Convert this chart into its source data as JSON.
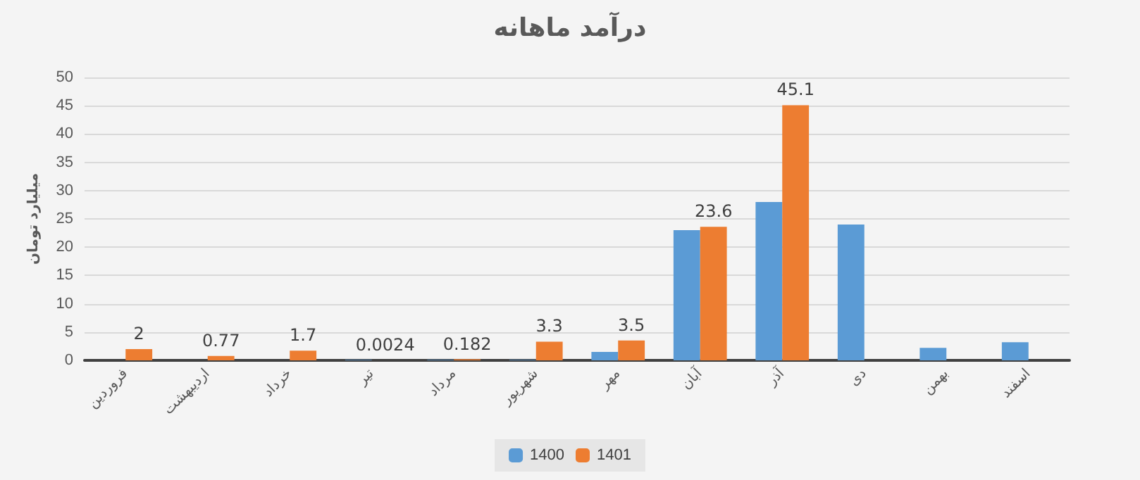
{
  "chart_data": {
    "type": "bar",
    "title": "درآمد ماهانه",
    "ylabel": "میلیارد تومان",
    "categories": [
      "فروردین",
      "اردیبهشت",
      "خرداد",
      "تیر",
      "مرداد",
      "شهریور",
      "مهر",
      "آبان",
      "آذر",
      "دی",
      "بهمن",
      "اسفند"
    ],
    "series": [
      {
        "name": "1400",
        "color": "#5b9bd5",
        "values": [
          null,
          null,
          null,
          0.1,
          0.1,
          0.1,
          1.5,
          23,
          28,
          24,
          2.2,
          3.2
        ]
      },
      {
        "name": "1401",
        "color": "#ed7d31",
        "values": [
          2,
          0.77,
          1.7,
          0.0024,
          0.182,
          3.3,
          3.5,
          23.6,
          45.1,
          null,
          null,
          null
        ],
        "value_labels": [
          "2",
          "0.77",
          "1.7",
          "0.0024",
          "0.182",
          "3.3",
          "3.5",
          "23.6",
          "45.1",
          null,
          null,
          null
        ]
      }
    ],
    "ylim": [
      0,
      50
    ],
    "yticks": [
      0,
      5,
      10,
      15,
      20,
      25,
      30,
      35,
      40,
      45,
      50
    ],
    "grid": "y",
    "legend": "bottom"
  }
}
